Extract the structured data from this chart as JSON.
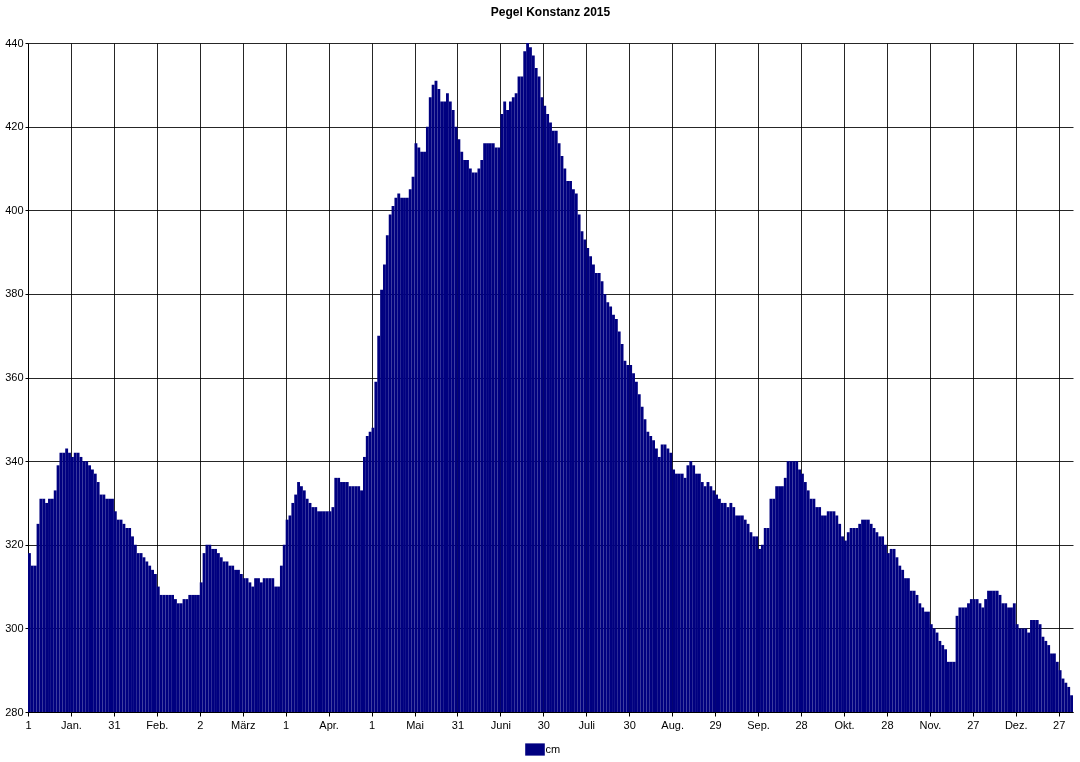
{
  "chart_data": {
    "type": "bar",
    "title": "Pegel Konstanz 2015",
    "x": [
      "2015-01-01",
      "2015-01-02",
      "2015-01-03",
      "2015-01-04",
      "2015-01-05",
      "2015-01-06",
      "2015-01-07",
      "2015-01-08",
      "2015-01-09",
      "2015-01-10",
      "2015-01-11",
      "2015-01-12",
      "2015-01-13",
      "2015-01-14",
      "2015-01-15",
      "2015-01-16",
      "2015-01-17",
      "2015-01-18",
      "2015-01-19",
      "2015-01-20",
      "2015-01-21",
      "2015-01-22",
      "2015-01-23",
      "2015-01-24",
      "2015-01-25",
      "2015-01-26",
      "2015-01-27",
      "2015-01-28",
      "2015-01-29",
      "2015-01-30",
      "2015-01-31",
      "2015-02-01",
      "2015-02-02",
      "2015-02-03",
      "2015-02-04",
      "2015-02-05",
      "2015-02-06",
      "2015-02-07",
      "2015-02-08",
      "2015-02-09",
      "2015-02-10",
      "2015-02-11",
      "2015-02-12",
      "2015-02-13",
      "2015-02-14",
      "2015-02-15",
      "2015-02-16",
      "2015-02-17",
      "2015-02-18",
      "2015-02-19",
      "2015-02-20",
      "2015-02-21",
      "2015-02-22",
      "2015-02-23",
      "2015-02-24",
      "2015-02-25",
      "2015-02-26",
      "2015-02-27",
      "2015-02-28",
      "2015-03-01",
      "2015-03-02",
      "2015-03-03",
      "2015-03-04",
      "2015-03-05",
      "2015-03-06",
      "2015-03-07",
      "2015-03-08",
      "2015-03-09",
      "2015-03-10",
      "2015-03-11",
      "2015-03-12",
      "2015-03-13",
      "2015-03-14",
      "2015-03-15",
      "2015-03-16",
      "2015-03-17",
      "2015-03-18",
      "2015-03-19",
      "2015-03-20",
      "2015-03-21",
      "2015-03-22",
      "2015-03-23",
      "2015-03-24",
      "2015-03-25",
      "2015-03-26",
      "2015-03-27",
      "2015-03-28",
      "2015-03-29",
      "2015-03-30",
      "2015-03-31",
      "2015-04-01",
      "2015-04-02",
      "2015-04-03",
      "2015-04-04",
      "2015-04-05",
      "2015-04-06",
      "2015-04-07",
      "2015-04-08",
      "2015-04-09",
      "2015-04-10",
      "2015-04-11",
      "2015-04-12",
      "2015-04-13",
      "2015-04-14",
      "2015-04-15",
      "2015-04-16",
      "2015-04-17",
      "2015-04-18",
      "2015-04-19",
      "2015-04-20",
      "2015-04-21",
      "2015-04-22",
      "2015-04-23",
      "2015-04-24",
      "2015-04-25",
      "2015-04-26",
      "2015-04-27",
      "2015-04-28",
      "2015-04-29",
      "2015-04-30",
      "2015-05-01",
      "2015-05-02",
      "2015-05-03",
      "2015-05-04",
      "2015-05-05",
      "2015-05-06",
      "2015-05-07",
      "2015-05-08",
      "2015-05-09",
      "2015-05-10",
      "2015-05-11",
      "2015-05-12",
      "2015-05-13",
      "2015-05-14",
      "2015-05-15",
      "2015-05-16",
      "2015-05-17",
      "2015-05-18",
      "2015-05-19",
      "2015-05-20",
      "2015-05-21",
      "2015-05-22",
      "2015-05-23",
      "2015-05-24",
      "2015-05-25",
      "2015-05-26",
      "2015-05-27",
      "2015-05-28",
      "2015-05-29",
      "2015-05-30",
      "2015-05-31",
      "2015-06-01",
      "2015-06-02",
      "2015-06-03",
      "2015-06-04",
      "2015-06-05",
      "2015-06-06",
      "2015-06-07",
      "2015-06-08",
      "2015-06-09",
      "2015-06-10",
      "2015-06-11",
      "2015-06-12",
      "2015-06-13",
      "2015-06-14",
      "2015-06-15",
      "2015-06-16",
      "2015-06-17",
      "2015-06-18",
      "2015-06-19",
      "2015-06-20",
      "2015-06-21",
      "2015-06-22",
      "2015-06-23",
      "2015-06-24",
      "2015-06-25",
      "2015-06-26",
      "2015-06-27",
      "2015-06-28",
      "2015-06-29",
      "2015-06-30",
      "2015-07-01",
      "2015-07-02",
      "2015-07-03",
      "2015-07-04",
      "2015-07-05",
      "2015-07-06",
      "2015-07-07",
      "2015-07-08",
      "2015-07-09",
      "2015-07-10",
      "2015-07-11",
      "2015-07-12",
      "2015-07-13",
      "2015-07-14",
      "2015-07-15",
      "2015-07-16",
      "2015-07-17",
      "2015-07-18",
      "2015-07-19",
      "2015-07-20",
      "2015-07-21",
      "2015-07-22",
      "2015-07-23",
      "2015-07-24",
      "2015-07-25",
      "2015-07-26",
      "2015-07-27",
      "2015-07-28",
      "2015-07-29",
      "2015-07-30",
      "2015-07-31",
      "2015-08-01",
      "2015-08-02",
      "2015-08-03",
      "2015-08-04",
      "2015-08-05",
      "2015-08-06",
      "2015-08-07",
      "2015-08-08",
      "2015-08-09",
      "2015-08-10",
      "2015-08-11",
      "2015-08-12",
      "2015-08-13",
      "2015-08-14",
      "2015-08-15",
      "2015-08-16",
      "2015-08-17",
      "2015-08-18",
      "2015-08-19",
      "2015-08-20",
      "2015-08-21",
      "2015-08-22",
      "2015-08-23",
      "2015-08-24",
      "2015-08-25",
      "2015-08-26",
      "2015-08-27",
      "2015-08-28",
      "2015-08-29",
      "2015-08-30",
      "2015-08-31",
      "2015-09-01",
      "2015-09-02",
      "2015-09-03",
      "2015-09-04",
      "2015-09-05",
      "2015-09-06",
      "2015-09-07",
      "2015-09-08",
      "2015-09-09",
      "2015-09-10",
      "2015-09-11",
      "2015-09-12",
      "2015-09-13",
      "2015-09-14",
      "2015-09-15",
      "2015-09-16",
      "2015-09-17",
      "2015-09-18",
      "2015-09-19",
      "2015-09-20",
      "2015-09-21",
      "2015-09-22",
      "2015-09-23",
      "2015-09-24",
      "2015-09-25",
      "2015-09-26",
      "2015-09-27",
      "2015-09-28",
      "2015-09-29",
      "2015-09-30",
      "2015-10-01",
      "2015-10-02",
      "2015-10-03",
      "2015-10-04",
      "2015-10-05",
      "2015-10-06",
      "2015-10-07",
      "2015-10-08",
      "2015-10-09",
      "2015-10-10",
      "2015-10-11",
      "2015-10-12",
      "2015-10-13",
      "2015-10-14",
      "2015-10-15",
      "2015-10-16",
      "2015-10-17",
      "2015-10-18",
      "2015-10-19",
      "2015-10-20",
      "2015-10-21",
      "2015-10-22",
      "2015-10-23",
      "2015-10-24",
      "2015-10-25",
      "2015-10-26",
      "2015-10-27",
      "2015-10-28",
      "2015-10-29",
      "2015-10-30",
      "2015-10-31",
      "2015-11-01",
      "2015-11-02",
      "2015-11-03",
      "2015-11-04",
      "2015-11-05",
      "2015-11-06",
      "2015-11-07",
      "2015-11-08",
      "2015-11-09",
      "2015-11-10",
      "2015-11-11",
      "2015-11-12",
      "2015-11-13",
      "2015-11-14",
      "2015-11-15",
      "2015-11-16",
      "2015-11-17",
      "2015-11-18",
      "2015-11-19",
      "2015-11-20",
      "2015-11-21",
      "2015-11-22",
      "2015-11-23",
      "2015-11-24",
      "2015-11-25",
      "2015-11-26",
      "2015-11-27",
      "2015-11-28",
      "2015-11-29",
      "2015-11-30",
      "2015-12-01",
      "2015-12-02",
      "2015-12-03",
      "2015-12-04",
      "2015-12-05",
      "2015-12-06",
      "2015-12-07",
      "2015-12-08",
      "2015-12-09",
      "2015-12-10",
      "2015-12-11",
      "2015-12-12",
      "2015-12-13",
      "2015-12-14",
      "2015-12-15",
      "2015-12-16",
      "2015-12-17",
      "2015-12-18",
      "2015-12-19",
      "2015-12-20",
      "2015-12-21",
      "2015-12-22",
      "2015-12-23",
      "2015-12-24",
      "2015-12-25",
      "2015-12-26",
      "2015-12-27",
      "2015-12-28",
      "2015-12-29",
      "2015-12-30",
      "2015-12-31"
    ],
    "series": [
      {
        "name": "cm",
        "color": "#000080",
        "values": [
          318,
          315,
          315,
          325,
          331,
          331,
          330,
          331,
          331,
          333,
          339,
          342,
          342,
          343,
          342,
          341,
          342,
          342,
          341,
          340,
          340,
          339,
          338,
          337,
          335,
          332,
          332,
          331,
          331,
          331,
          328,
          326,
          326,
          325,
          324,
          324,
          322,
          320,
          318,
          318,
          317,
          316,
          315,
          314,
          313,
          310,
          308,
          308,
          308,
          308,
          308,
          307,
          306,
          306,
          307,
          307,
          308,
          308,
          308,
          308,
          311,
          318,
          320,
          320,
          319,
          319,
          318,
          317,
          316,
          316,
          315,
          315,
          314,
          314,
          313,
          312,
          312,
          311,
          310,
          312,
          312,
          311,
          312,
          312,
          312,
          312,
          310,
          310,
          315,
          320,
          326,
          327,
          330,
          332,
          335,
          334,
          333,
          331,
          330,
          329,
          329,
          328,
          328,
          328,
          328,
          328,
          329,
          336,
          336,
          335,
          335,
          335,
          334,
          334,
          334,
          334,
          333,
          341,
          346,
          347,
          348,
          359,
          370,
          381,
          387,
          394,
          399,
          401,
          403,
          404,
          403,
          403,
          403,
          405,
          408,
          416,
          415,
          414,
          414,
          420,
          427,
          430,
          431,
          429,
          426,
          426,
          428,
          426,
          424,
          420,
          417,
          414,
          412,
          412,
          410,
          409,
          409,
          410,
          412,
          416,
          416,
          416,
          416,
          415,
          415,
          423,
          426,
          424,
          426,
          427,
          428,
          432,
          432,
          438,
          440,
          439,
          437,
          434,
          432,
          427,
          425,
          423,
          421,
          419,
          419,
          416,
          413,
          410,
          407,
          407,
          405,
          404,
          399,
          395,
          393,
          391,
          389,
          387,
          385,
          385,
          383,
          380,
          378,
          377,
          375,
          374,
          371,
          368,
          364,
          363,
          363,
          361,
          359,
          356,
          353,
          350,
          347,
          346,
          345,
          343,
          341,
          344,
          344,
          343,
          342,
          338,
          337,
          337,
          337,
          336,
          339,
          340,
          339,
          337,
          337,
          335,
          334,
          335,
          334,
          333,
          332,
          331,
          330,
          330,
          329,
          330,
          329,
          327,
          327,
          327,
          326,
          325,
          323,
          322,
          322,
          319,
          320,
          324,
          324,
          331,
          331,
          334,
          334,
          334,
          336,
          340,
          340,
          340,
          340,
          338,
          337,
          335,
          333,
          331,
          331,
          329,
          329,
          327,
          327,
          328,
          328,
          328,
          327,
          325,
          322,
          321,
          323,
          324,
          324,
          324,
          325,
          326,
          326,
          326,
          325,
          324,
          323,
          322,
          322,
          320,
          318,
          319,
          319,
          317,
          315,
          314,
          312,
          312,
          309,
          309,
          308,
          306,
          305,
          304,
          304,
          301,
          300,
          299,
          297,
          296,
          295,
          292,
          292,
          292,
          303,
          305,
          305,
          305,
          306,
          307,
          307,
          307,
          306,
          305,
          307,
          309,
          309,
          309,
          309,
          308,
          306,
          306,
          305,
          305,
          306,
          301,
          300,
          300,
          300,
          299,
          302,
          302,
          302,
          301,
          298,
          297,
          296,
          294,
          294,
          292,
          290,
          288,
          287,
          286,
          284
        ]
      }
    ],
    "xlim": [
      "2015-01-01",
      "2016-01-01"
    ],
    "xticks": [
      {
        "value": "2015-01-01",
        "label": "1"
      },
      {
        "value": "2015-01-16",
        "label": "Jan."
      },
      {
        "value": "2015-01-31",
        "label": "31"
      },
      {
        "value": "2015-02-15",
        "label": "Feb."
      },
      {
        "value": "2015-03-02",
        "label": "2"
      },
      {
        "value": "2015-03-17",
        "label": "März"
      },
      {
        "value": "2015-04-01",
        "label": "1"
      },
      {
        "value": "2015-04-16",
        "label": "Apr."
      },
      {
        "value": "2015-05-01",
        "label": "1"
      },
      {
        "value": "2015-05-16",
        "label": "Mai"
      },
      {
        "value": "2015-05-31",
        "label": "31"
      },
      {
        "value": "2015-06-15",
        "label": "Juni"
      },
      {
        "value": "2015-06-30",
        "label": "30"
      },
      {
        "value": "2015-07-15",
        "label": "Juli"
      },
      {
        "value": "2015-07-30",
        "label": "30"
      },
      {
        "value": "2015-08-14",
        "label": "Aug."
      },
      {
        "value": "2015-08-29",
        "label": "29"
      },
      {
        "value": "2015-09-13",
        "label": "Sep."
      },
      {
        "value": "2015-09-28",
        "label": "28"
      },
      {
        "value": "2015-10-13",
        "label": "Okt."
      },
      {
        "value": "2015-10-28",
        "label": "28"
      },
      {
        "value": "2015-11-12",
        "label": "Nov."
      },
      {
        "value": "2015-11-27",
        "label": "27"
      },
      {
        "value": "2015-12-12",
        "label": "Dez."
      },
      {
        "value": "2015-12-27",
        "label": "27"
      }
    ],
    "ylim": [
      280,
      440
    ],
    "yticks": [
      280,
      300,
      320,
      340,
      360,
      380,
      400,
      420,
      440
    ],
    "grid": true,
    "legend": "bottom"
  }
}
